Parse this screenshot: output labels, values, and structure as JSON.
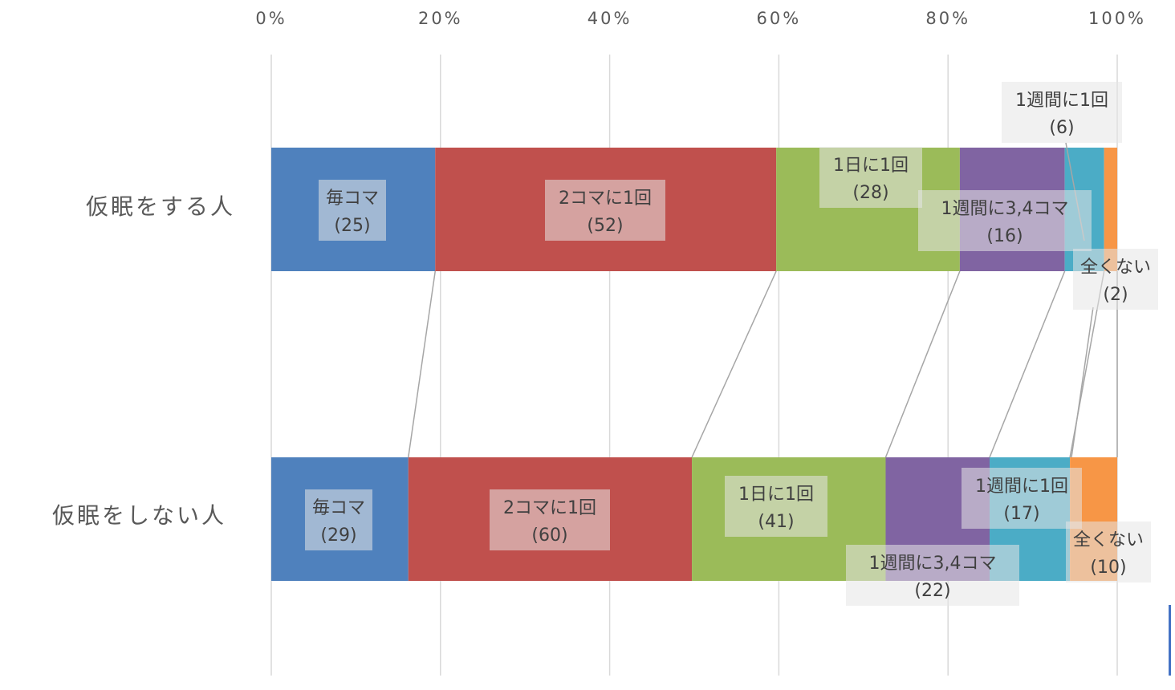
{
  "chart_data": {
    "type": "bar",
    "stacked": "percent",
    "orientation": "horizontal",
    "categories": [
      "仮眠をする人",
      "仮眠をしない人"
    ],
    "x_ticks": [
      "0%",
      "20%",
      "40%",
      "60%",
      "80%",
      "100%"
    ],
    "xlim": [
      0,
      100
    ],
    "grid": true,
    "series": [
      {
        "name": "毎コマ",
        "label": "毎コマ",
        "values": [
          25,
          29
        ],
        "color": "#4f81bd"
      },
      {
        "name": "2コマに1回",
        "label": "2コマに1回",
        "values": [
          52,
          60
        ],
        "color": "#c0504d"
      },
      {
        "name": "1日に1回",
        "label": "1日に1回",
        "values": [
          28,
          41
        ],
        "color": "#9bbb59"
      },
      {
        "name": "1週間に3,4コマ",
        "label": "1週間に3,4コマ",
        "values": [
          16,
          22
        ],
        "color": "#8064a2"
      },
      {
        "name": "1週間に1回",
        "label": "1週間に1回",
        "values": [
          6,
          17
        ],
        "color": "#4bacc6"
      },
      {
        "name": "全くない",
        "label": "全くない",
        "values": [
          2,
          10
        ],
        "color": "#f79646"
      }
    ],
    "data_labels": [
      [
        "(25)",
        "(52)",
        "(28)",
        "(16)",
        "(6)",
        "(2)"
      ],
      [
        "(29)",
        "(60)",
        "(41)",
        "(22)",
        "(17)",
        "(10)"
      ]
    ]
  }
}
